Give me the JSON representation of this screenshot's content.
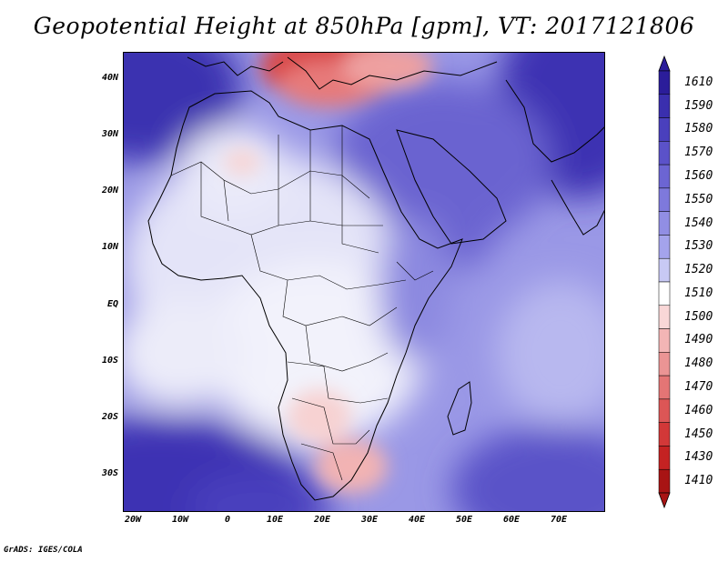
{
  "title": "Geopotential Height at 850hPa [gpm], VT: 2017121806",
  "footer": "GrADS: IGES/COLA",
  "axes": {
    "lat_labels": [
      "40N",
      "30N",
      "20N",
      "10N",
      "EQ",
      "10S",
      "20S",
      "30S"
    ],
    "lon_labels": [
      "20W",
      "10W",
      "0",
      "10E",
      "20E",
      "30E",
      "40E",
      "50E",
      "60E",
      "70E"
    ]
  },
  "colorbar": {
    "labels": [
      "1610",
      "1590",
      "1580",
      "1570",
      "1560",
      "1550",
      "1540",
      "1530",
      "1520",
      "1510",
      "1500",
      "1490",
      "1480",
      "1470",
      "1460",
      "1450",
      "1430",
      "1410"
    ],
    "colors": [
      "#2b1d9a",
      "#3a2fae",
      "#4a40bd",
      "#5b52c9",
      "#6c65d3",
      "#7e79dc",
      "#918ee4",
      "#a4a3ec",
      "#c8c9f4",
      "#ffffff",
      "#f9d7d7",
      "#f3b5b5",
      "#eb9494",
      "#e47575",
      "#dc5656",
      "#d23838",
      "#c42222",
      "#a81414"
    ]
  }
}
